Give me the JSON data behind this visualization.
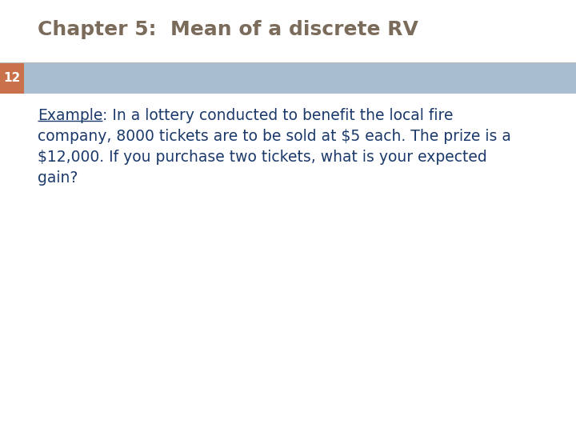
{
  "title": "Chapter 5:  Mean of a discrete RV",
  "title_color": "#7B6B5A",
  "title_fontsize": 18,
  "slide_number": "12",
  "slide_number_bg": "#C8714A",
  "slide_number_color": "#FFFFFF",
  "header_bar_color": "#A8BDD0",
  "body_lines": [
    [
      "Example",
      ": In a lottery conducted to benefit the local fire"
    ],
    [
      "",
      "company, 8000 tickets are to be sold at $5 each. The prize is a"
    ],
    [
      "",
      "$12,000. If you purchase two tickets, what is your expected"
    ],
    [
      "",
      "gain?"
    ]
  ],
  "text_color": "#1B3A6B",
  "text_fontsize": 13.5,
  "background_color": "#FFFFFF",
  "separator_color": "#BBBBBB"
}
